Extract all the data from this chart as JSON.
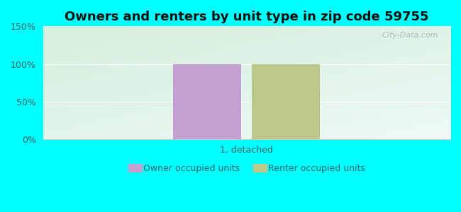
{
  "title": "Owners and renters by unit type in zip code 59755",
  "categories": [
    "1, detached"
  ],
  "owner_values": [
    100
  ],
  "renter_values": [
    100
  ],
  "owner_color": "#c4a0d0",
  "renter_color": "#bcc88a",
  "ylim": [
    0,
    150
  ],
  "yticks": [
    0,
    50,
    100,
    150
  ],
  "ytick_labels": [
    "0%",
    "50%",
    "100%",
    "150%"
  ],
  "background_color": "#00ffff",
  "plot_bg_top_right": "#e8f5f0",
  "plot_bg_bottom_left": "#d4edda",
  "legend_owner": "Owner occupied units",
  "legend_renter": "Renter occupied units",
  "watermark": "City-Data.com",
  "bar_width": 0.25,
  "title_fontsize": 13,
  "label_fontsize": 9,
  "legend_fontsize": 9,
  "tick_color": "#336666",
  "grid_color": "#ffffff",
  "spine_color": "#cccccc"
}
